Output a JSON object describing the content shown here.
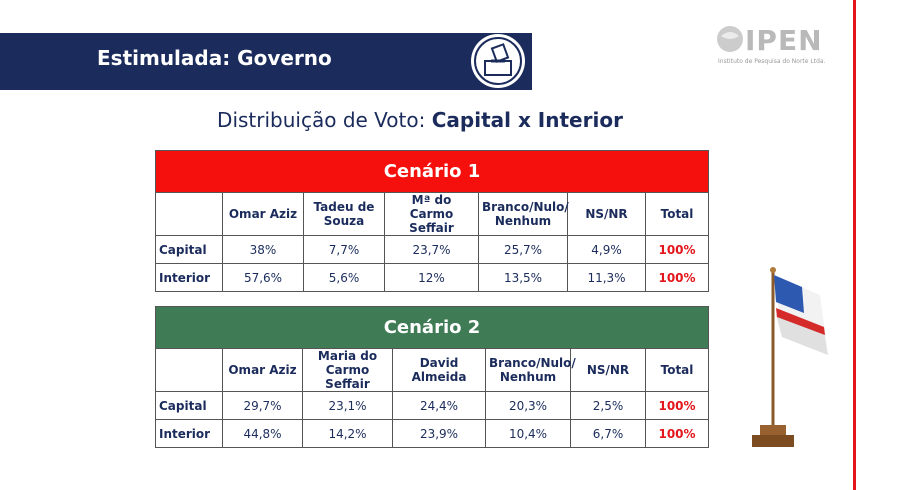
{
  "header": {
    "title": "Estimulada: Governo"
  },
  "logo": {
    "name": "IPEN",
    "tagline": "Instituto de Pesquisa do Norte Ltda."
  },
  "subtitle": {
    "prefix": "Distribuição de Voto:",
    "emphasis": "Capital x Interior"
  },
  "tables": [
    {
      "title": "Cenário 1",
      "headers": [
        "Omar Aziz",
        "Tadeu de Souza",
        "Mª do Carmo Seffair",
        "Branco/Nulo/ Nenhum",
        "NS/NR",
        "Total"
      ],
      "rows": [
        [
          "Capital",
          "38%",
          "7,7%",
          "23,7%",
          "25,7%",
          "4,9%",
          "100%"
        ],
        [
          "Interior",
          "57,6%",
          "5,6%",
          "12%",
          "13,5%",
          "11,3%",
          "100%"
        ]
      ]
    },
    {
      "title": "Cenário 2",
      "headers": [
        "Omar Aziz",
        "Maria do Carmo Seffair",
        "David Almeida",
        "Branco/Nulo/ Nenhum",
        "NS/NR",
        "Total"
      ],
      "rows": [
        [
          "Capital",
          "29,7%",
          "23,1%",
          "24,4%",
          "20,3%",
          "2,5%",
          "100%"
        ],
        [
          "Interior",
          "44,8%",
          "14,2%",
          "23,9%",
          "10,4%",
          "6,7%",
          "100%"
        ]
      ]
    }
  ]
}
